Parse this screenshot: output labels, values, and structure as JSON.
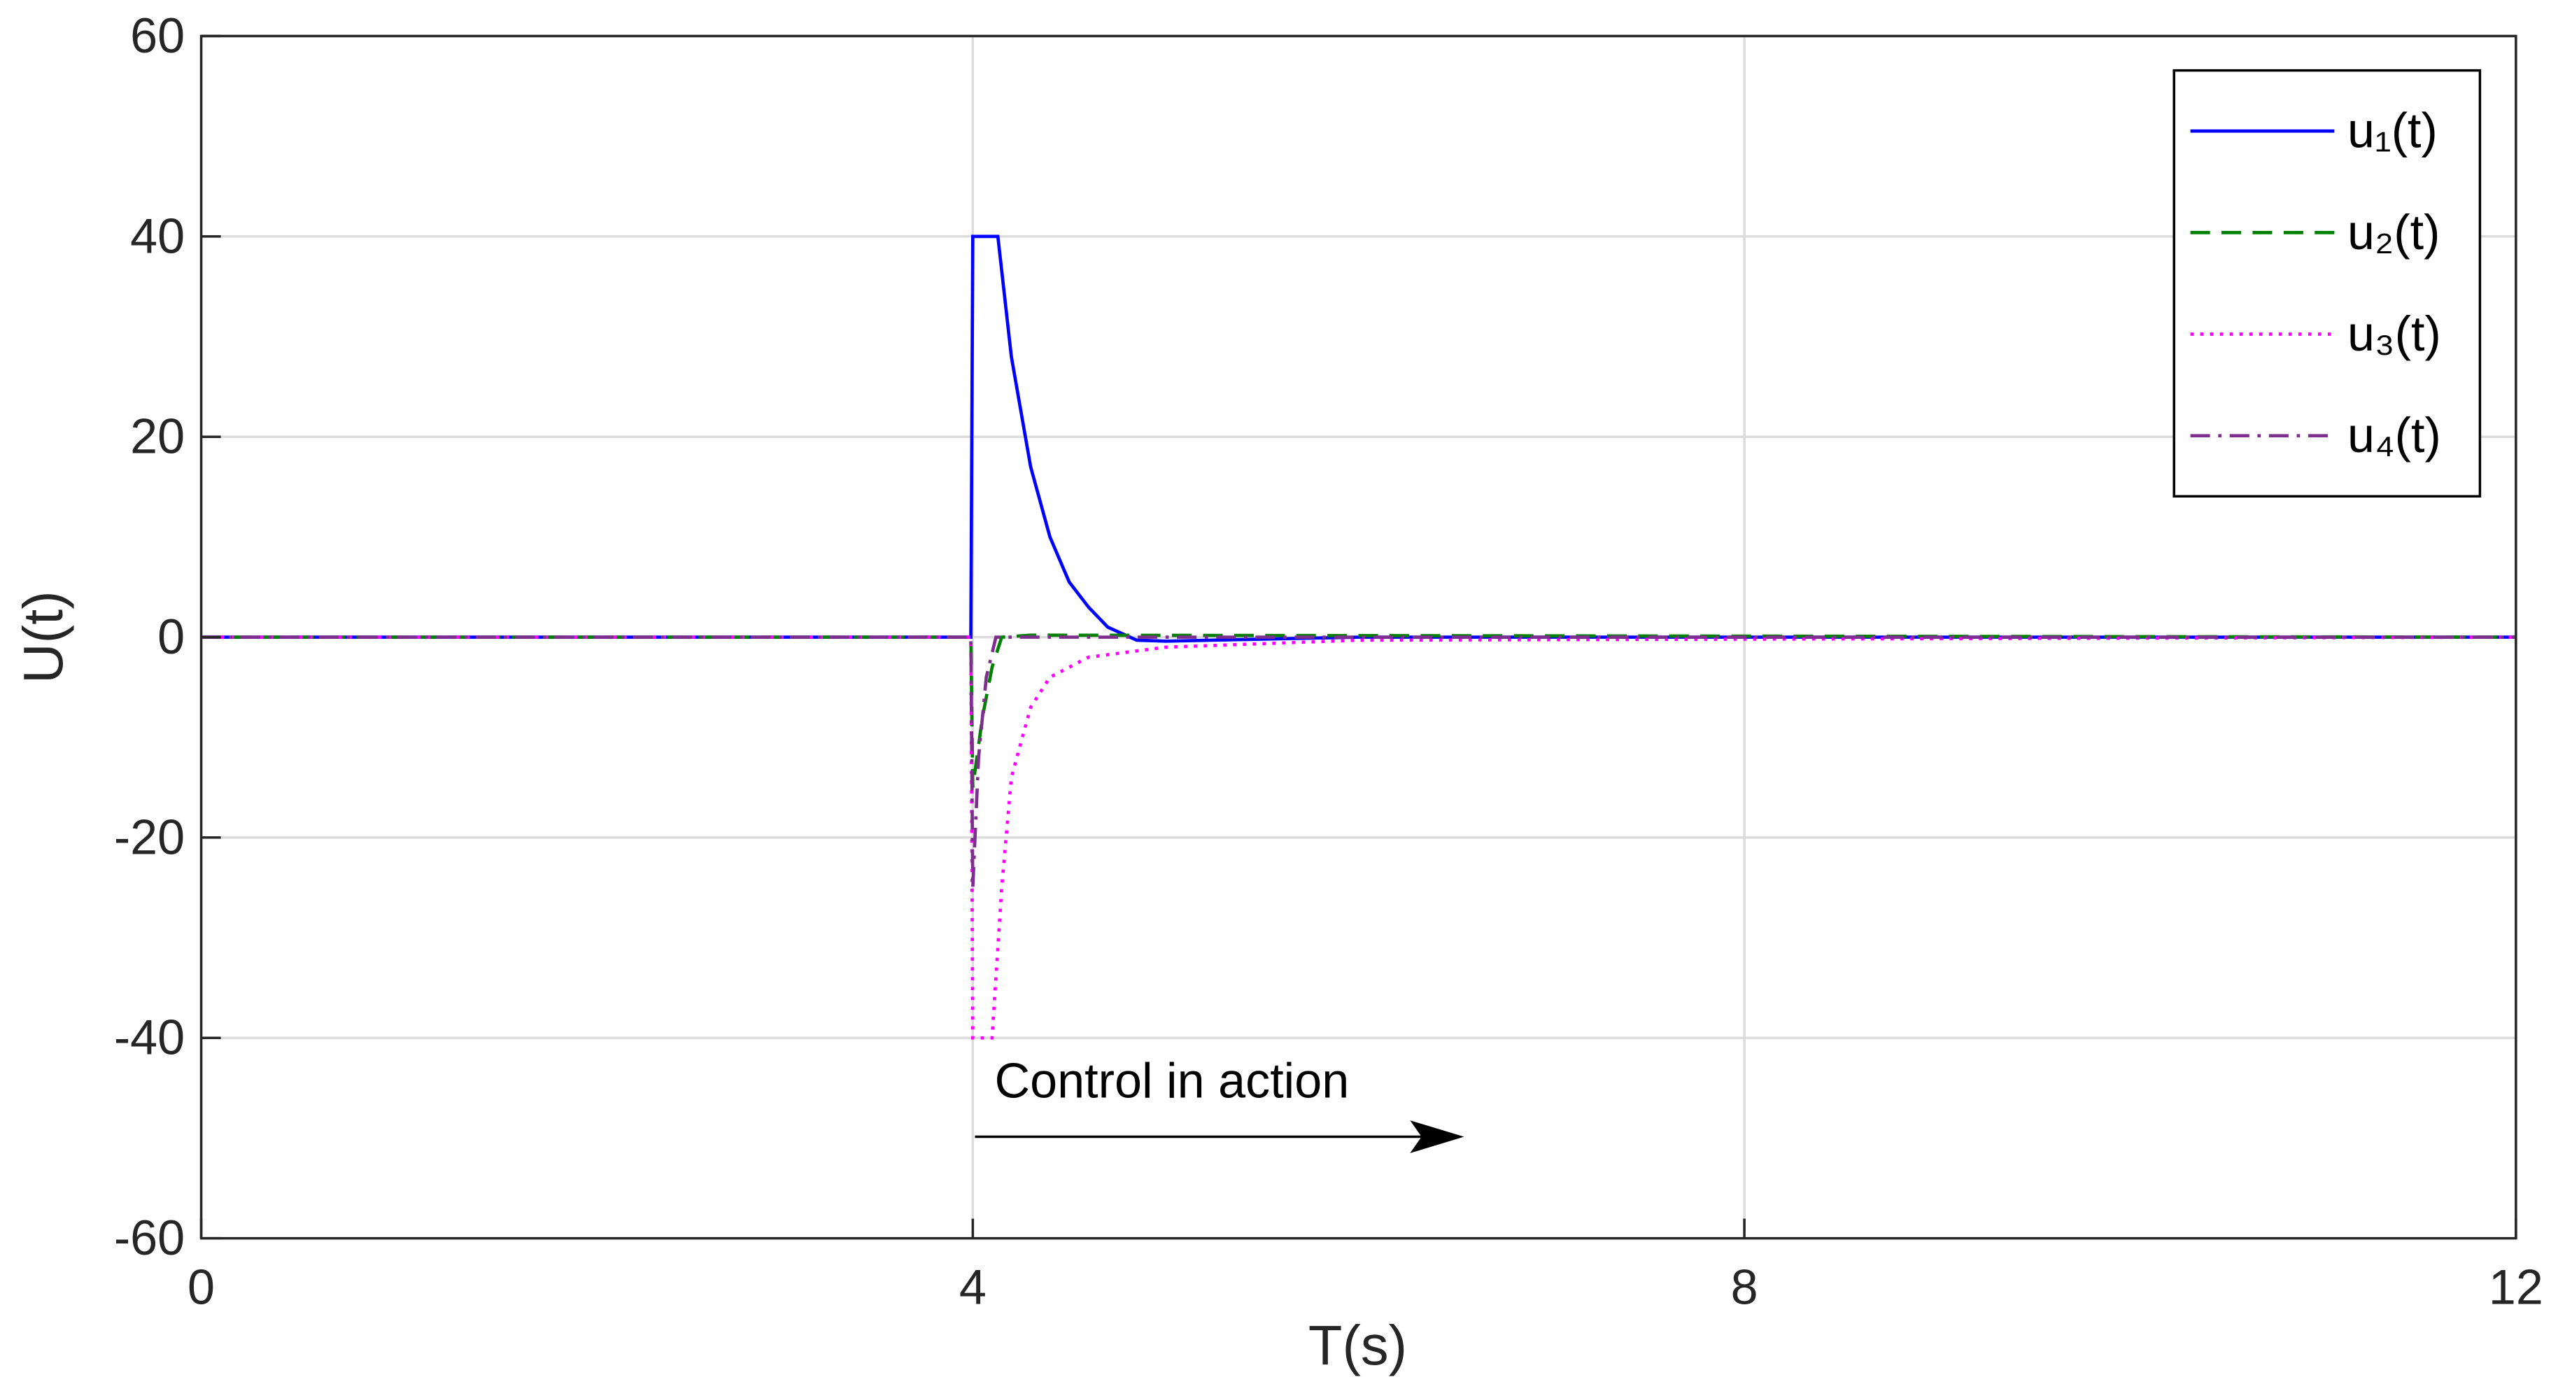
{
  "chart_data": {
    "type": "line",
    "xlabel": "T(s)",
    "ylabel": "U(t)",
    "xlim": [
      0,
      12
    ],
    "xticks": [
      0,
      4,
      8,
      12
    ],
    "ylim": [
      -60,
      60
    ],
    "yticks": [
      -60,
      -40,
      -20,
      0,
      20,
      40,
      60
    ],
    "grid": true,
    "legend": "upper right",
    "annotation": "Control in action",
    "series": [
      {
        "name": "u₁(t)",
        "color": "#0000ff",
        "dash": "solid",
        "x": [
          0,
          3.99,
          4.0,
          4.13,
          4.2,
          4.3,
          4.4,
          4.5,
          4.6,
          4.7,
          4.85,
          5.0,
          5.5,
          6,
          12
        ],
        "values": [
          0,
          0,
          40,
          40,
          28,
          17,
          10,
          5.5,
          3,
          1,
          -0.3,
          -0.4,
          -0.2,
          0,
          0
        ]
      },
      {
        "name": "u₂(t)",
        "color": "#008000",
        "dash": "dashed",
        "x": [
          0,
          3.99,
          4.0,
          4.05,
          4.1,
          4.15,
          4.3,
          12
        ],
        "values": [
          0,
          0,
          -15,
          -8,
          -3,
          0,
          0.2,
          0
        ]
      },
      {
        "name": "u₃(t)",
        "color": "#ff00ff",
        "dash": "dotted",
        "x": [
          0,
          3.99,
          4.0,
          4.1,
          4.15,
          4.2,
          4.3,
          4.4,
          4.6,
          5,
          6,
          12
        ],
        "values": [
          0,
          0,
          -40,
          -40,
          -25,
          -14,
          -7,
          -4,
          -2,
          -1,
          -0.3,
          0
        ]
      },
      {
        "name": "u₄(t)",
        "color": "#7e2f8e",
        "dash": "dashdot",
        "x": [
          0,
          3.99,
          4.0,
          4.03,
          4.07,
          4.12,
          12
        ],
        "values": [
          0,
          0,
          -25,
          -12,
          -4,
          0,
          0
        ]
      }
    ]
  }
}
